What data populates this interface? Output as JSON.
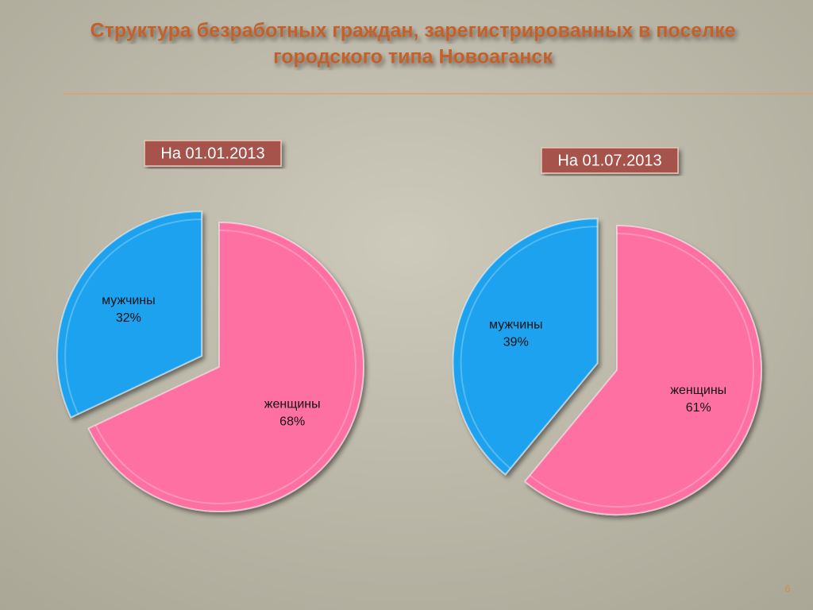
{
  "title": "Структура безработных граждан, зарегистрированных в поселке городского типа Новоаганск",
  "slide_number": 6,
  "chart_data": [
    {
      "type": "pie",
      "title": "На 01.01.2013",
      "categories": [
        "мужчины",
        "женщины"
      ],
      "values": [
        32,
        68
      ],
      "value_labels": [
        "32%",
        "68%"
      ],
      "colors": [
        "#1aa2ee",
        "#ff6fa2"
      ]
    },
    {
      "type": "pie",
      "title": "На 01.07.2013",
      "categories": [
        "мужчины",
        "женщины"
      ],
      "values": [
        39,
        61
      ],
      "value_labels": [
        "39%",
        "61%"
      ],
      "colors": [
        "#1aa2ee",
        "#ff6fa2"
      ]
    }
  ]
}
